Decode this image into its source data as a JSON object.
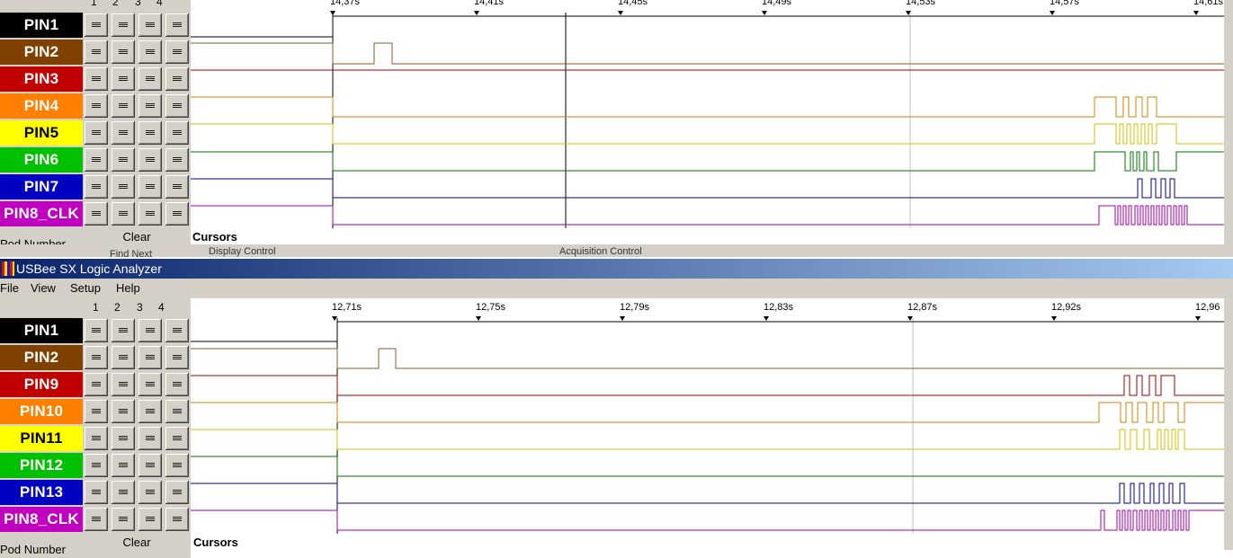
{
  "app_title": "USBee SX Logic Analyzer",
  "menu": [
    "File",
    "View",
    "Setup",
    "Help"
  ],
  "pod_numbers": [
    "1",
    "2",
    "3",
    "4"
  ],
  "clear_label": "Clear",
  "pod_number_label": "Pod Number",
  "cursors_label": "Cursors",
  "strip_labels": {
    "first": "Find Next",
    "display": "Display Control",
    "acquisition": "Acquisition Control"
  },
  "colors": {
    "black": "#000000",
    "brown": "#804000",
    "red": "#c00000",
    "orange": "#ff8000",
    "yellow": "#ffff00",
    "green": "#00c000",
    "blue": "#0000c0",
    "magenta": "#c000c0"
  },
  "top": {
    "ticks": [
      "14,37s",
      "14,41s",
      "14,45s",
      "14,49s",
      "14,53s",
      "14,57s",
      "14,61s"
    ],
    "channels": [
      {
        "name": "PIN1",
        "color": "#000000",
        "trace": "#000000"
      },
      {
        "name": "PIN2",
        "color": "#804000",
        "trace": "#8b5a2b"
      },
      {
        "name": "PIN3",
        "color": "#c00000",
        "trace": "#a00000"
      },
      {
        "name": "PIN4",
        "color": "#ff8000",
        "trace": "#d08000"
      },
      {
        "name": "PIN5",
        "color": "#ffff00",
        "trace": "#d0c000"
      },
      {
        "name": "PIN6",
        "color": "#00c000",
        "trace": "#007000"
      },
      {
        "name": "PIN7",
        "color": "#0000c0",
        "trace": "#000080"
      },
      {
        "name": "PIN8_CLK",
        "color": "#c000c0",
        "trace": "#a000a0"
      }
    ]
  },
  "bottom": {
    "ticks": [
      "12,71s",
      "12,75s",
      "12,79s",
      "12,83s",
      "12,87s",
      "12,92s",
      "12,96"
    ],
    "channels": [
      {
        "name": "PIN1",
        "color": "#000000",
        "trace": "#000000"
      },
      {
        "name": "PIN2",
        "color": "#804000",
        "trace": "#8b5a2b"
      },
      {
        "name": "PIN9",
        "color": "#c00000",
        "trace": "#a00000"
      },
      {
        "name": "PIN10",
        "color": "#ff8000",
        "trace": "#d08000"
      },
      {
        "name": "PIN11",
        "color": "#ffff00",
        "trace": "#d0c000"
      },
      {
        "name": "PIN12",
        "color": "#00c000",
        "trace": "#007000"
      },
      {
        "name": "PIN13",
        "color": "#0000c0",
        "trace": "#000080"
      },
      {
        "name": "PIN8_CLK",
        "color": "#c000c0",
        "trace": "#a000a0"
      }
    ]
  }
}
